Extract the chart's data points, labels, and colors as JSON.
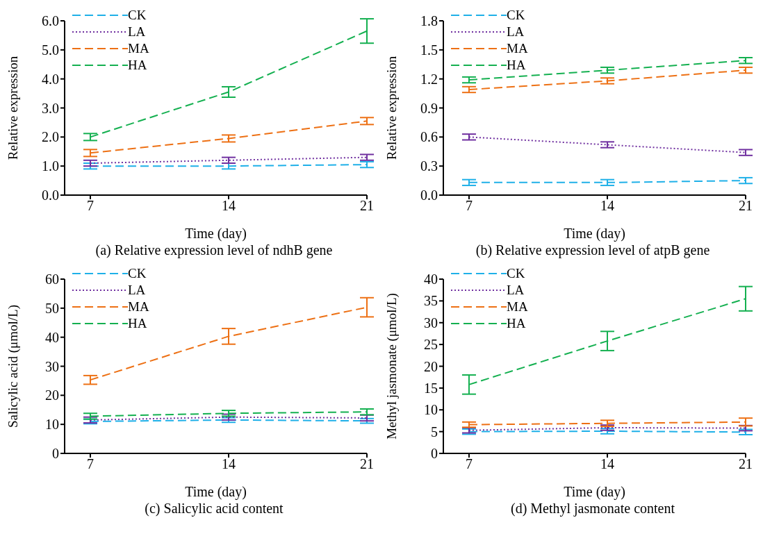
{
  "chart_data": [
    {
      "type": "line",
      "title": "(a) Relative expression level of ndhB gene",
      "xlabel": "Time (day)",
      "ylabel": "Relative expression",
      "x": [
        7,
        14,
        21
      ],
      "xlim": [
        5.7,
        21
      ],
      "xticks": [
        7,
        14,
        21
      ],
      "ylim": [
        0,
        6
      ],
      "yticks": [
        {
          "value": 0,
          "label": "0.0"
        },
        {
          "value": 1,
          "label": "1.0"
        },
        {
          "value": 2,
          "label": "2.0"
        },
        {
          "value": 3,
          "label": "3.0"
        },
        {
          "value": 4,
          "label": "4.0"
        },
        {
          "value": 5,
          "label": "5.0"
        },
        {
          "value": 6,
          "label": "6.0"
        }
      ],
      "grid": false,
      "legend": "top left",
      "marker": "none",
      "series": [
        {
          "name": "CK",
          "color": "#1fb0e8",
          "line_style": "dashed",
          "values": [
            1.0,
            1.0,
            1.05
          ],
          "errors": [
            0.1,
            0.1,
            0.1
          ]
        },
        {
          "name": "LA",
          "color": "#7030a0",
          "line_style": "dotted",
          "values": [
            1.1,
            1.2,
            1.3
          ],
          "errors": [
            0.1,
            0.1,
            0.1
          ]
        },
        {
          "name": "MA",
          "color": "#ed7014",
          "line_style": "dashed",
          "values": [
            1.45,
            1.95,
            2.55
          ],
          "errors": [
            0.12,
            0.12,
            0.12
          ]
        },
        {
          "name": "HA",
          "color": "#14b050",
          "line_style": "dashed",
          "values": [
            2.0,
            3.55,
            5.65
          ],
          "errors": [
            0.12,
            0.18,
            0.42
          ]
        }
      ]
    },
    {
      "type": "line",
      "title": "(b) Relative expression level of atpB gene",
      "xlabel": "Time (day)",
      "ylabel": "Relative expression",
      "x": [
        7,
        14,
        21
      ],
      "xlim": [
        5.7,
        21
      ],
      "xticks": [
        7,
        14,
        21
      ],
      "ylim": [
        0,
        1.8
      ],
      "yticks": [
        {
          "value": 0,
          "label": "0.0"
        },
        0.3,
        0.6,
        0.9,
        1.2,
        1.5,
        1.8
      ],
      "grid": false,
      "legend": "top left",
      "marker": "none",
      "series": [
        {
          "name": "CK",
          "color": "#1fb0e8",
          "line_style": "dashed",
          "values": [
            0.13,
            0.13,
            0.15
          ],
          "errors": [
            0.03,
            0.03,
            0.03
          ]
        },
        {
          "name": "LA",
          "color": "#7030a0",
          "line_style": "dotted",
          "values": [
            0.6,
            0.52,
            0.44
          ],
          "errors": [
            0.03,
            0.03,
            0.03
          ]
        },
        {
          "name": "MA",
          "color": "#ed7014",
          "line_style": "dashed",
          "values": [
            1.09,
            1.18,
            1.29
          ],
          "errors": [
            0.03,
            0.03,
            0.03
          ]
        },
        {
          "name": "HA",
          "color": "#14b050",
          "line_style": "dashed",
          "values": [
            1.19,
            1.29,
            1.39
          ],
          "errors": [
            0.03,
            0.03,
            0.03
          ]
        }
      ]
    },
    {
      "type": "line",
      "title": "(c) Salicylic acid content",
      "xlabel": "Time (day)",
      "ylabel": "Salicylic acid (μmol/L)",
      "x": [
        7,
        14,
        21
      ],
      "xlim": [
        5.7,
        21
      ],
      "xticks": [
        7,
        14,
        21
      ],
      "ylim": [
        0,
        60
      ],
      "yticks": [
        0,
        10,
        20,
        30,
        40,
        50,
        60
      ],
      "grid": false,
      "legend": "top left",
      "marker": "none",
      "series": [
        {
          "name": "CK",
          "color": "#1fb0e8",
          "line_style": "dashed",
          "values": [
            11,
            11.5,
            11.2
          ],
          "errors": [
            0.8,
            0.8,
            0.8
          ]
        },
        {
          "name": "LA",
          "color": "#7030a0",
          "line_style": "dotted",
          "values": [
            11.5,
            12.5,
            12.2
          ],
          "errors": [
            1,
            1,
            1
          ]
        },
        {
          "name": "MA",
          "color": "#ed7014",
          "line_style": "dashed",
          "values": [
            25.3,
            40.3,
            50.3
          ],
          "errors": [
            1.5,
            2.7,
            3.3
          ]
        },
        {
          "name": "HA",
          "color": "#14b050",
          "line_style": "dashed",
          "values": [
            12.8,
            13.8,
            14.3
          ],
          "errors": [
            1,
            1,
            1
          ]
        }
      ]
    },
    {
      "type": "line",
      "title": "(d) Methyl jasmonate content",
      "xlabel": "Time (day)",
      "ylabel": "Methyl jasmonate (μmol/L)",
      "x": [
        7,
        14,
        21
      ],
      "xlim": [
        5.7,
        21
      ],
      "xticks": [
        7,
        14,
        21
      ],
      "ylim": [
        0,
        40
      ],
      "yticks": [
        0,
        5,
        10,
        15,
        20,
        25,
        30,
        35,
        40
      ],
      "grid": false,
      "legend": "top left",
      "marker": "none",
      "series": [
        {
          "name": "CK",
          "color": "#1fb0e8",
          "line_style": "dashed",
          "values": [
            5,
            5.1,
            4.9
          ],
          "errors": [
            0.6,
            0.6,
            0.6
          ]
        },
        {
          "name": "LA",
          "color": "#7030a0",
          "line_style": "dotted",
          "values": [
            5.3,
            5.9,
            5.8
          ],
          "errors": [
            0.6,
            0.6,
            0.6
          ]
        },
        {
          "name": "MA",
          "color": "#ed7014",
          "line_style": "dashed",
          "values": [
            6.6,
            6.9,
            7.2
          ],
          "errors": [
            0.6,
            0.7,
            0.9
          ]
        },
        {
          "name": "HA",
          "color": "#14b050",
          "line_style": "dashed",
          "values": [
            15.8,
            25.8,
            35.5
          ],
          "errors": [
            2.2,
            2.2,
            2.8
          ]
        }
      ]
    }
  ]
}
